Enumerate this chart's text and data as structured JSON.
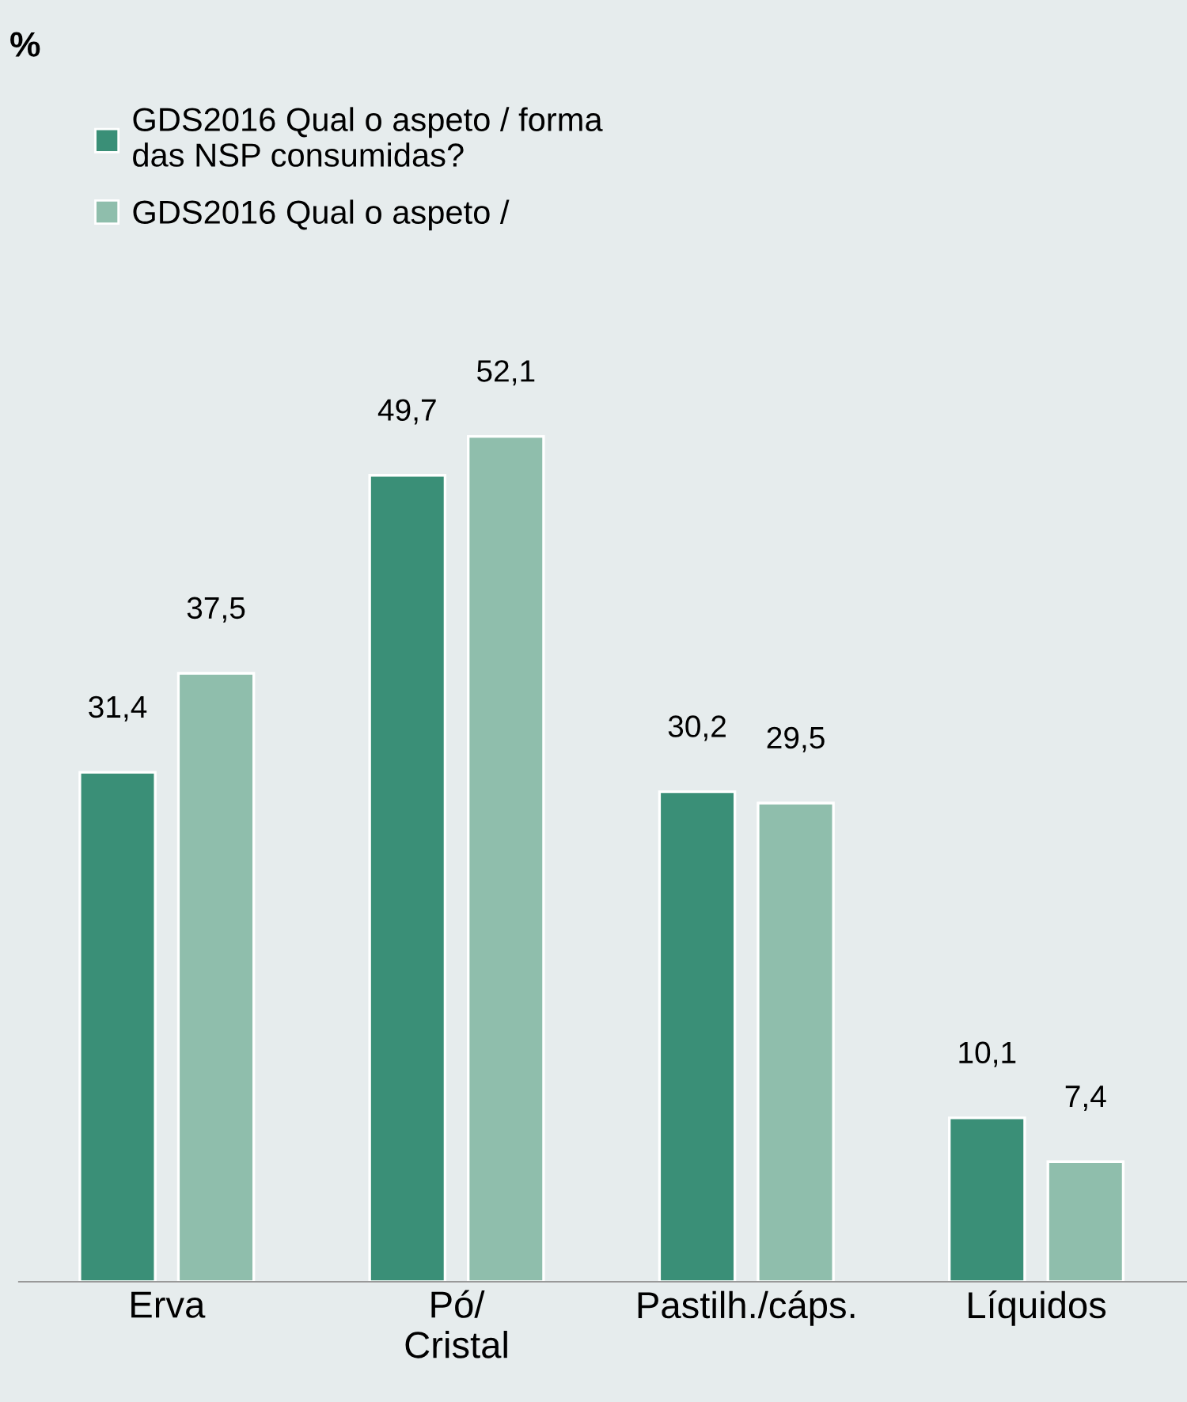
{
  "chart_data": {
    "type": "bar",
    "annotations": [
      "%"
    ],
    "categories": [
      "Erva",
      "Pó/\nCristal",
      "Pastilh./cáps.",
      "Líquidos"
    ],
    "series": [
      {
        "name": "GDS2016 Qual o aspeto / forma\ndas NSP consumidas?",
        "color": "#3a8f77",
        "values": [
          31.4,
          49.7,
          30.2,
          10.1
        ],
        "value_labels": [
          "31,4",
          "49,7",
          "30,2",
          "10,1"
        ]
      },
      {
        "name": "GDS2016 Qual o aspeto /",
        "color": "#8fbeac",
        "values": [
          37.5,
          52.1,
          29.5,
          7.4
        ],
        "value_labels": [
          "37,5",
          "52,1",
          "29,5",
          "7,4"
        ]
      }
    ],
    "grid": false,
    "legend": "top left",
    "tick_labels": "x"
  }
}
